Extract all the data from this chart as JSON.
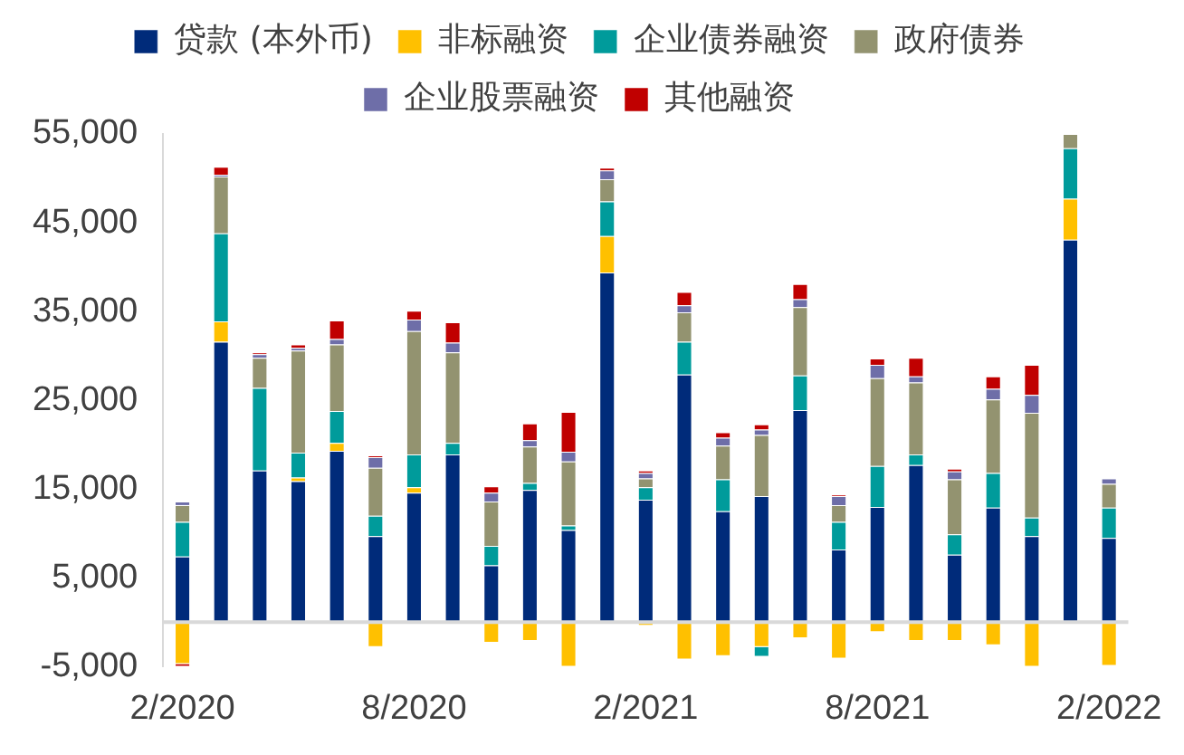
{
  "chart_data": {
    "type": "bar",
    "stacked": true,
    "legend": "top",
    "grid": false,
    "categories": [
      "2/2020",
      null,
      null,
      null,
      null,
      null,
      "8/2020",
      null,
      null,
      null,
      null,
      null,
      "2/2021",
      null,
      null,
      null,
      null,
      null,
      "8/2021",
      null,
      null,
      null,
      null,
      null,
      "2/2022"
    ],
    "ylim": [
      -5000,
      55000
    ],
    "yticks": [
      {
        "value": -5000,
        "label": "-5,000"
      },
      {
        "value": 5000,
        "label": "5,000"
      },
      {
        "value": 15000,
        "label": "15,000"
      },
      {
        "value": 25000,
        "label": "25,000"
      },
      {
        "value": 35000,
        "label": "35,000"
      },
      {
        "value": 45000,
        "label": "45,000"
      },
      {
        "value": 55000,
        "label": "55,000"
      }
    ],
    "series": [
      {
        "name": "贷款 (本外币)",
        "color": "#002b7a",
        "values": [
          7400,
          31600,
          17100,
          15900,
          19300,
          9700,
          14600,
          18900,
          6400,
          14900,
          10400,
          39400,
          13800,
          27900,
          12500,
          14200,
          23900,
          8200,
          13000,
          17700,
          7600,
          12900,
          9700,
          43100,
          9500
        ]
      },
      {
        "name": "非标融资",
        "color": "#ffc000",
        "values": [
          -4700,
          2300,
          0,
          400,
          900,
          -2800,
          600,
          0,
          -2300,
          -2100,
          -5000,
          4100,
          -400,
          -4200,
          -3800,
          -2800,
          -1800,
          -4100,
          -1100,
          -2100,
          -2100,
          -2600,
          -5000,
          4600,
          -4900
        ]
      },
      {
        "name": "企业债券融资",
        "color": "#009b9b",
        "values": [
          3900,
          9900,
          9300,
          2800,
          3600,
          2300,
          3700,
          1300,
          2200,
          800,
          500,
          3900,
          1400,
          3700,
          3600,
          -1100,
          3900,
          3100,
          4600,
          1200,
          2300,
          3900,
          2100,
          5700,
          3400
        ]
      },
      {
        "name": "政府债券",
        "color": "#939370",
        "values": [
          1900,
          6400,
          3400,
          11500,
          7500,
          5400,
          13900,
          10200,
          5000,
          4100,
          7200,
          2500,
          1000,
          3300,
          3800,
          6900,
          7700,
          1900,
          9900,
          8100,
          6200,
          8300,
          11800,
          1600,
          2700
        ]
      },
      {
        "name": "企业股票融资",
        "color": "#6e6ea8",
        "values": [
          400,
          200,
          400,
          300,
          600,
          1200,
          1300,
          1100,
          1000,
          700,
          1100,
          1000,
          600,
          800,
          900,
          600,
          900,
          1000,
          1500,
          700,
          900,
          1200,
          2000,
          0,
          600
        ]
      },
      {
        "name": "其他融资",
        "color": "#c00000",
        "values": [
          -300,
          900,
          200,
          400,
          2100,
          200,
          1000,
          2300,
          700,
          1900,
          4500,
          300,
          300,
          1500,
          600,
          600,
          1700,
          200,
          700,
          2100,
          300,
          1400,
          3400,
          0,
          0
        ]
      }
    ]
  }
}
